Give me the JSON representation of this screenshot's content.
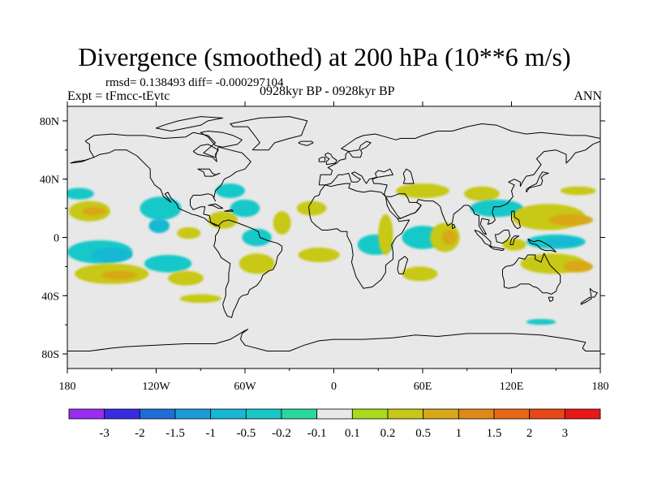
{
  "header": {
    "title": "Divergence (smoothed) at 200 hPa (10**6 m/s)",
    "stats": "rmsd= 0.138493 diff= -0.000297104",
    "experiment": "Expt = tFmcc-tEvtc",
    "period": "0928kyr BP - 0928kyr BP",
    "season": "ANN"
  },
  "colors": {
    "land_outline": "#000000",
    "frame": "#000000",
    "neutral_fill": "#e8e8e8"
  },
  "map": {
    "projection": "cylindrical-equidistant",
    "lon_range": [
      -180,
      180
    ],
    "lat_range": [
      -90,
      90
    ],
    "lat_ticks": [
      {
        "label": "80N",
        "lat": 80
      },
      {
        "label": "40N",
        "lat": 40
      },
      {
        "label": "0",
        "lat": 0
      },
      {
        "label": "40S",
        "lat": -40
      },
      {
        "label": "80S",
        "lat": -80
      }
    ],
    "lon_ticks": [
      {
        "label": "180",
        "lon": -180
      },
      {
        "label": "120W",
        "lon": -120
      },
      {
        "label": "60W",
        "lon": -60
      },
      {
        "label": "0",
        "lon": 0
      },
      {
        "label": "60E",
        "lon": 60
      },
      {
        "label": "120E",
        "lon": 120
      },
      {
        "label": "180",
        "lon": 180
      }
    ],
    "anomaly_patches": [
      {
        "lon": -172,
        "lat": 30,
        "rlon": 10,
        "rlat": 4,
        "level": "-0.2"
      },
      {
        "lon": -165,
        "lat": 18,
        "rlon": 14,
        "rlat": 7,
        "level": "0.2"
      },
      {
        "lon": -162,
        "lat": 18,
        "rlon": 8,
        "rlat": 3,
        "level": "0.5"
      },
      {
        "lon": -158,
        "lat": -10,
        "rlon": 22,
        "rlat": 8,
        "level": "-0.2"
      },
      {
        "lon": -150,
        "lat": -12,
        "rlon": 14,
        "rlat": 5,
        "level": "-0.5"
      },
      {
        "lon": -150,
        "lat": -25,
        "rlon": 25,
        "rlat": 7,
        "level": "0.2"
      },
      {
        "lon": -145,
        "lat": -26,
        "rlon": 12,
        "rlat": 3,
        "level": "0.5"
      },
      {
        "lon": -117,
        "lat": 20,
        "rlon": 14,
        "rlat": 8,
        "level": "-0.2"
      },
      {
        "lon": -118,
        "lat": 8,
        "rlon": 7,
        "rlat": 5,
        "level": "-0.5"
      },
      {
        "lon": -112,
        "lat": -18,
        "rlon": 16,
        "rlat": 6,
        "level": "-0.2"
      },
      {
        "lon": -100,
        "lat": -28,
        "rlon": 12,
        "rlat": 5,
        "level": "0.2"
      },
      {
        "lon": -98,
        "lat": 3,
        "rlon": 8,
        "rlat": 4,
        "level": "0.2"
      },
      {
        "lon": -90,
        "lat": -42,
        "rlon": 14,
        "rlat": 3,
        "level": "0.2"
      },
      {
        "lon": -75,
        "lat": 12,
        "rlon": 10,
        "rlat": 6,
        "level": "0.2"
      },
      {
        "lon": -70,
        "lat": 32,
        "rlon": 10,
        "rlat": 5,
        "level": "-0.2"
      },
      {
        "lon": -60,
        "lat": 20,
        "rlon": 10,
        "rlat": 6,
        "level": "-0.2"
      },
      {
        "lon": -52,
        "lat": 0,
        "rlon": 10,
        "rlat": 6,
        "level": "-0.2"
      },
      {
        "lon": -52,
        "lat": -18,
        "rlon": 12,
        "rlat": 7,
        "level": "0.2"
      },
      {
        "lon": -35,
        "lat": 10,
        "rlon": 6,
        "rlat": 8,
        "level": "0.2"
      },
      {
        "lon": -15,
        "lat": 20,
        "rlon": 10,
        "rlat": 5,
        "level": "0.2"
      },
      {
        "lon": -10,
        "lat": -12,
        "rlon": 14,
        "rlat": 5,
        "level": "0.2"
      },
      {
        "lon": 28,
        "lat": -5,
        "rlon": 12,
        "rlat": 7,
        "level": "-0.2"
      },
      {
        "lon": 35,
        "lat": 2,
        "rlon": 5,
        "rlat": 14,
        "level": "0.2"
      },
      {
        "lon": 60,
        "lat": 32,
        "rlon": 18,
        "rlat": 5,
        "level": "0.2"
      },
      {
        "lon": 60,
        "lat": 0,
        "rlon": 14,
        "rlat": 8,
        "level": "-0.2"
      },
      {
        "lon": 75,
        "lat": 0,
        "rlon": 10,
        "rlat": 10,
        "level": "0.2"
      },
      {
        "lon": 78,
        "lat": 0,
        "rlon": 5,
        "rlat": 5,
        "level": "0.5"
      },
      {
        "lon": 58,
        "lat": -25,
        "rlon": 12,
        "rlat": 5,
        "level": "0.2"
      },
      {
        "lon": 100,
        "lat": 30,
        "rlon": 12,
        "rlat": 5,
        "level": "0.2"
      },
      {
        "lon": 110,
        "lat": 20,
        "rlon": 18,
        "rlat": 6,
        "level": "-0.2"
      },
      {
        "lon": 122,
        "lat": -5,
        "rlon": 8,
        "rlat": 4,
        "level": "0.2"
      },
      {
        "lon": 145,
        "lat": 14,
        "rlon": 25,
        "rlat": 9,
        "level": "0.2"
      },
      {
        "lon": 160,
        "lat": 12,
        "rlon": 15,
        "rlat": 4,
        "level": "0.5"
      },
      {
        "lon": 150,
        "lat": -3,
        "rlon": 20,
        "rlat": 5,
        "level": "-0.2"
      },
      {
        "lon": 155,
        "lat": -3,
        "rlon": 12,
        "rlat": 3,
        "level": "-0.5"
      },
      {
        "lon": 148,
        "lat": -18,
        "rlon": 22,
        "rlat": 7,
        "level": "0.2"
      },
      {
        "lon": 165,
        "lat": -20,
        "rlon": 10,
        "rlat": 4,
        "level": "0.5"
      },
      {
        "lon": 165,
        "lat": 32,
        "rlon": 12,
        "rlat": 3,
        "level": "0.2"
      },
      {
        "lon": 140,
        "lat": -58,
        "rlon": 10,
        "rlat": 2,
        "level": "-0.2"
      }
    ]
  },
  "colorbar": {
    "colors": [
      "#9a2cf0",
      "#3a2ce0",
      "#1e6ed8",
      "#1a9cd8",
      "#18b8d4",
      "#18c8c8",
      "#28d8a0",
      "#e8e8e8",
      "#a8dc1c",
      "#c8c818",
      "#d8a818",
      "#e08818",
      "#e86818",
      "#e84818",
      "#e81818"
    ],
    "labels": [
      "-3",
      "-2",
      "-1.5",
      "-1",
      "-0.5",
      "-0.2",
      "-0.1",
      "0.1",
      "0.2",
      "0.5",
      "1",
      "1.5",
      "2",
      "3"
    ]
  }
}
